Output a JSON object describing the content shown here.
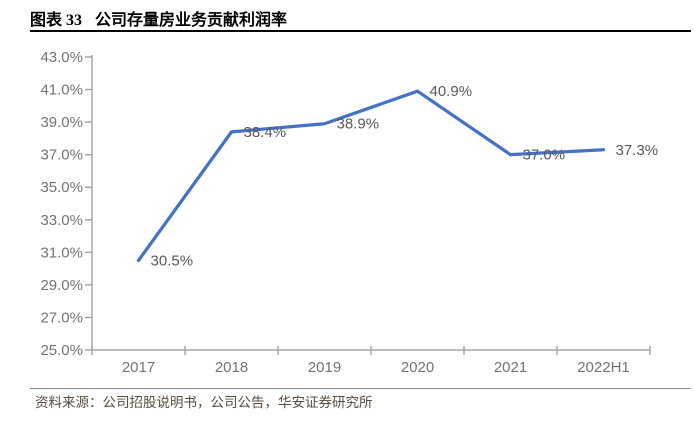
{
  "header": {
    "figure_label": "图表 33",
    "figure_title": "公司存量房业务贡献利润率"
  },
  "footer": {
    "source": "资料来源：公司招股说明书，公司公告，华安证券研究所"
  },
  "chart_data": {
    "type": "line",
    "title": "公司存量房业务贡献利润率",
    "categories": [
      "2017",
      "2018",
      "2019",
      "2020",
      "2021",
      "2022H1"
    ],
    "values": [
      30.5,
      38.4,
      38.9,
      40.9,
      37.0,
      37.3
    ],
    "point_labels": [
      "30.5%",
      "38.4%",
      "38.9%",
      "40.9%",
      "37.0%",
      "37.3%"
    ],
    "ylim": [
      25.0,
      43.0
    ],
    "ytick_step": 2.0,
    "ytick_labels": [
      "25.0%",
      "27.0%",
      "29.0%",
      "31.0%",
      "33.0%",
      "35.0%",
      "37.0%",
      "39.0%",
      "41.0%",
      "43.0%"
    ],
    "grid": false,
    "legend": "none",
    "line_color": "#4472C4",
    "label_color": "#595959",
    "axis_color": "#A6A6A6",
    "tick_label_color": "#737373"
  }
}
